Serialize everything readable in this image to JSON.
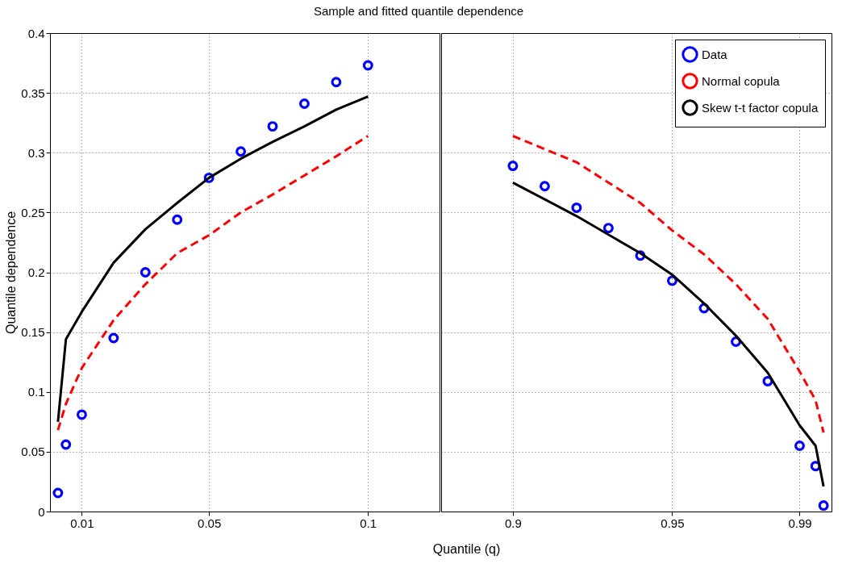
{
  "chart_data": [
    {
      "type": "line",
      "title": "Sample and fitted quantile dependence",
      "xlabel": "Quantile (q)",
      "ylabel": "Quantile dependence",
      "xlim": [
        0,
        0.1225
      ],
      "xticks": [
        0.01,
        0.05,
        0.1
      ],
      "ylim": [
        0,
        0.4
      ],
      "yticks": [
        0,
        0.05,
        0.1,
        0.15,
        0.2,
        0.25,
        0.3,
        0.35,
        0.4
      ],
      "grid": true,
      "series": [
        {
          "type": "scatter",
          "marker": "circle",
          "color": "#0000ff",
          "x": [
            0.0025,
            0.005,
            0.01,
            0.02,
            0.03,
            0.04,
            0.05,
            0.06,
            0.07,
            0.08,
            0.09,
            0.1
          ],
          "values": [
            0.0155,
            0.056,
            0.081,
            0.145,
            0.2,
            0.244,
            0.279,
            0.301,
            0.322,
            0.341,
            0.359,
            0.373
          ]
        },
        {
          "type": "line",
          "line_style": "dashed",
          "color": "#ff0000",
          "x": [
            0.0025,
            0.005,
            0.01,
            0.02,
            0.03,
            0.04,
            0.05,
            0.06,
            0.07,
            0.08,
            0.09,
            0.1
          ],
          "values": [
            0.068,
            0.09,
            0.12,
            0.16,
            0.19,
            0.216,
            0.231,
            0.25,
            0.265,
            0.281,
            0.297,
            0.314
          ]
        },
        {
          "type": "line",
          "line_style": "solid",
          "color": "#000000",
          "x": [
            0.0025,
            0.005,
            0.01,
            0.02,
            0.03,
            0.04,
            0.05,
            0.06,
            0.07,
            0.08,
            0.09,
            0.1
          ],
          "values": [
            0.075,
            0.144,
            0.167,
            0.208,
            0.236,
            0.258,
            0.279,
            0.295,
            0.309,
            0.322,
            0.336,
            0.347
          ]
        }
      ]
    },
    {
      "type": "line",
      "xlim": [
        0.8775,
        1
      ],
      "xticks": [
        0.9,
        0.95,
        0.99
      ],
      "ylim": [
        0,
        0.4
      ],
      "yticks": [
        0,
        0.05,
        0.1,
        0.15,
        0.2,
        0.25,
        0.3,
        0.35,
        0.4
      ],
      "grid": true,
      "tick_labels": "x",
      "legend": "top right",
      "series": [
        {
          "name": "Data",
          "type": "scatter",
          "marker": "circle",
          "color": "#0000ff",
          "x": [
            0.9,
            0.91,
            0.92,
            0.93,
            0.94,
            0.95,
            0.96,
            0.97,
            0.98,
            0.99,
            0.995,
            0.9975
          ],
          "values": [
            0.289,
            0.272,
            0.254,
            0.237,
            0.214,
            0.193,
            0.17,
            0.142,
            0.109,
            0.055,
            0.038,
            0.005
          ]
        },
        {
          "name": "Normal copula",
          "type": "line",
          "line_style": "dashed",
          "color": "#ff0000",
          "x": [
            0.9,
            0.92,
            0.94,
            0.95,
            0.96,
            0.97,
            0.98,
            0.99,
            0.995,
            0.9975
          ],
          "values": [
            0.314,
            0.292,
            0.258,
            0.235,
            0.215,
            0.19,
            0.161,
            0.117,
            0.093,
            0.066
          ]
        },
        {
          "name": "Skew t-t factor copula",
          "type": "line",
          "line_style": "solid",
          "color": "#000000",
          "x": [
            0.9,
            0.92,
            0.94,
            0.95,
            0.96,
            0.97,
            0.98,
            0.99,
            0.995,
            0.9975
          ],
          "values": [
            0.275,
            0.247,
            0.216,
            0.198,
            0.174,
            0.147,
            0.116,
            0.072,
            0.055,
            0.021
          ]
        }
      ]
    }
  ]
}
